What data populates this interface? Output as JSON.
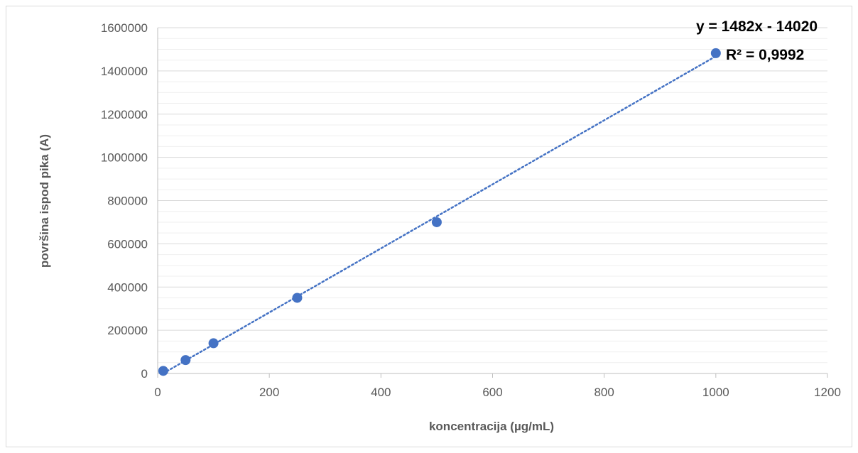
{
  "chart_data": {
    "type": "scatter",
    "title": "",
    "xlabel": "koncentracija (µg/mL)",
    "ylabel": "površina ispod pika (A)",
    "xlim": [
      0,
      1200
    ],
    "ylim": [
      0,
      1600000
    ],
    "x_ticks": [
      "0",
      "200",
      "400",
      "600",
      "800",
      "1000",
      "1200"
    ],
    "y_ticks": [
      "0",
      "200000",
      "400000",
      "600000",
      "800000",
      "1000000",
      "1200000",
      "1400000",
      "1600000"
    ],
    "grid": {
      "major": true,
      "minor": true
    },
    "legend": "none",
    "series": [
      {
        "x": [
          10,
          50,
          100,
          250,
          500,
          1000
        ],
        "y": [
          12000,
          62000,
          140000,
          350000,
          700000,
          1482000
        ]
      }
    ],
    "trendline": {
      "type": "linear",
      "style": "dotted",
      "slope": 1482,
      "intercept": -14020,
      "x_range": [
        10,
        1000
      ],
      "equation_label": "y = 1482x - 14020",
      "r2_label": "R² = 0,9992"
    },
    "colors": {
      "marker": "#4472c4",
      "trendline": "#4472c4",
      "gridline": "#d9d9d9",
      "axis": "#bfbfbf",
      "text": "#595959"
    }
  }
}
